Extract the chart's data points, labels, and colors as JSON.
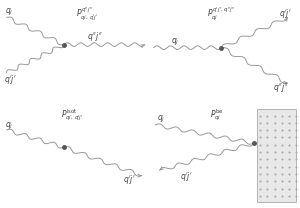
{
  "bg_color": "#ffffff",
  "line_color": "#999999",
  "text_color": "#444444",
  "dot_color": "#555555",
  "figsize": [
    3.0,
    2.08
  ],
  "dpi": 100,
  "lw": 0.7,
  "amplitude": 0.018,
  "dot_size": 2.5,
  "fontsize_label": 5.5,
  "fontsize_title": 5.5
}
